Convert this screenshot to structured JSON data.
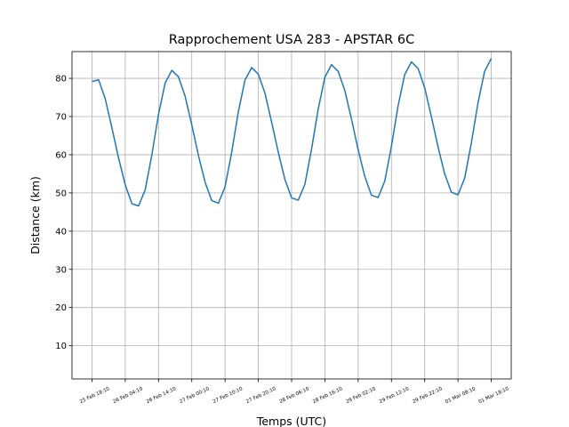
{
  "chart_data": {
    "type": "line",
    "title": "Rapprochement USA 283 - APSTAR 6C",
    "x_label": "Temps (UTC)",
    "y_label": "Distance (km)",
    "x": [
      "25 Feb 18:10",
      "25 Feb 20:10",
      "25 Feb 22:10",
      "26 Feb 00:10",
      "26 Feb 02:10",
      "26 Feb 04:10",
      "26 Feb 06:10",
      "26 Feb 08:10",
      "26 Feb 10:10",
      "26 Feb 12:10",
      "26 Feb 14:10",
      "26 Feb 16:10",
      "26 Feb 18:10",
      "26 Feb 20:10",
      "26 Feb 22:10",
      "27 Feb 00:10",
      "27 Feb 02:10",
      "27 Feb 04:10",
      "27 Feb 06:10",
      "27 Feb 08:10",
      "27 Feb 10:10",
      "27 Feb 12:10",
      "27 Feb 14:10",
      "27 Feb 16:10",
      "27 Feb 18:10",
      "27 Feb 20:10",
      "27 Feb 22:10",
      "28 Feb 00:10",
      "28 Feb 02:10",
      "28 Feb 04:10",
      "28 Feb 06:10",
      "28 Feb 08:10",
      "28 Feb 10:10",
      "28 Feb 12:10",
      "28 Feb 14:10",
      "28 Feb 16:10",
      "28 Feb 18:10",
      "28 Feb 20:10",
      "28 Feb 22:10",
      "29 Feb 00:10",
      "29 Feb 02:10",
      "29 Feb 04:10",
      "29 Feb 06:10",
      "29 Feb 08:10",
      "29 Feb 10:10",
      "29 Feb 12:10",
      "29 Feb 14:10",
      "29 Feb 16:10",
      "29 Feb 18:10",
      "29 Feb 20:10",
      "29 Feb 22:10",
      "01 Mar 00:10",
      "01 Mar 02:10",
      "01 Mar 04:10",
      "01 Mar 06:10",
      "01 Mar 08:10",
      "01 Mar 10:10",
      "01 Mar 12:10",
      "01 Mar 14:10",
      "01 Mar 16:10",
      "01 Mar 18:10"
    ],
    "series": [
      {
        "color": "#1f77b4",
        "values": [
          79.2,
          79.6,
          74.6,
          67.0,
          59.1,
          52.1,
          47.2,
          46.6,
          50.8,
          60.0,
          70.6,
          78.8,
          82.1,
          80.4,
          75.3,
          67.8,
          59.8,
          52.8,
          48.0,
          47.3,
          51.6,
          60.7,
          71.3,
          79.6,
          82.8,
          81.1,
          76.1,
          68.5,
          60.6,
          53.5,
          48.7,
          48.1,
          52.3,
          61.5,
          72.0,
          80.3,
          83.6,
          81.8,
          76.8,
          69.3,
          61.3,
          54.3,
          49.4,
          48.8,
          53.1,
          62.2,
          72.8,
          81.0,
          84.3,
          82.6,
          77.5,
          70.0,
          62.1,
          55.0,
          50.2,
          49.5,
          53.8,
          63.0,
          73.5,
          81.8,
          85.2
        ]
      }
    ],
    "xticks": [
      "25 Feb 18:10",
      "26 Feb 04:10",
      "26 Feb 14:10",
      "27 Feb 00:10",
      "27 Feb 10:10",
      "27 Feb 20:10",
      "28 Feb 06:10",
      "28 Feb 16:10",
      "29 Feb 02:10",
      "29 Feb 12:10",
      "29 Feb 22:10",
      "01 Mar 08:10",
      "01 Mar 18:10"
    ],
    "ylim": [
      1.3,
      87
    ],
    "yticks": [
      10,
      20,
      30,
      40,
      50,
      60,
      70,
      80
    ],
    "grid": true
  }
}
